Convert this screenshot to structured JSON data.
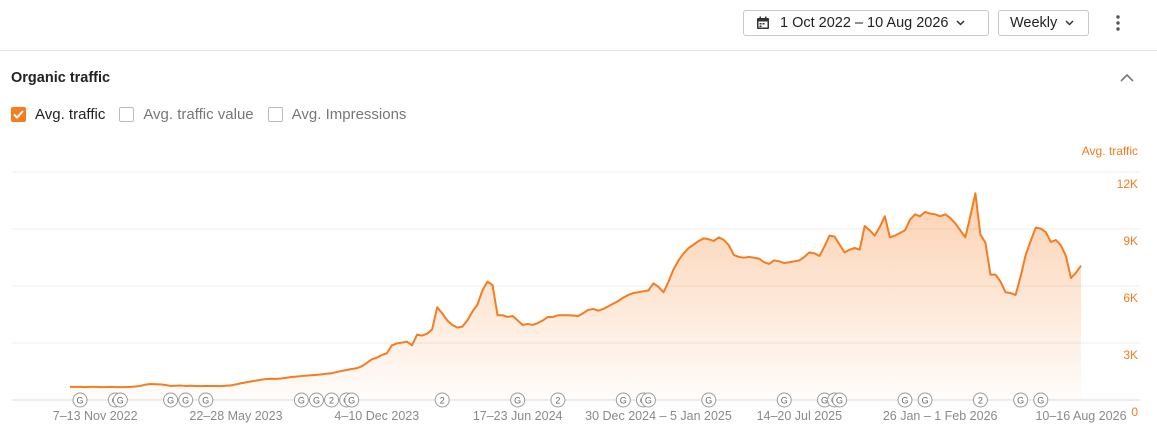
{
  "toolbar": {
    "date_range": "1 Oct 2022 – 10 Aug 2026",
    "interval": "Weekly"
  },
  "panel": {
    "title": "Organic traffic",
    "metrics": [
      {
        "label": "Avg. traffic",
        "checked": true
      },
      {
        "label": "Avg. traffic value",
        "checked": false
      },
      {
        "label": "Avg. Impressions",
        "checked": false
      }
    ]
  },
  "chart_data": {
    "type": "area",
    "y_axis_label": "Avg. traffic",
    "color": "#f57c1f",
    "grid": true,
    "categories": [
      null,
      null,
      null,
      null,
      null,
      "7–13 Nov 2022",
      null,
      null,
      null,
      null,
      null,
      null,
      null,
      null,
      null,
      null,
      null,
      null,
      null,
      null,
      null,
      null,
      null,
      null,
      null,
      null,
      null,
      null,
      null,
      null,
      null,
      null,
      null,
      "22–28 May 2023",
      null,
      null,
      null,
      null,
      null,
      null,
      null,
      null,
      null,
      null,
      null,
      null,
      null,
      null,
      null,
      null,
      null,
      null,
      null,
      null,
      null,
      null,
      null,
      null,
      null,
      null,
      null,
      "4–10 Dec 2023",
      null,
      null,
      null,
      null,
      null,
      null,
      null,
      null,
      null,
      null,
      null,
      null,
      null,
      null,
      null,
      null,
      null,
      null,
      null,
      null,
      null,
      null,
      null,
      null,
      null,
      null,
      null,
      "17–23 Jun 2024",
      null,
      null,
      null,
      null,
      null,
      null,
      null,
      null,
      null,
      null,
      null,
      null,
      null,
      null,
      null,
      null,
      null,
      null,
      null,
      null,
      null,
      null,
      null,
      null,
      null,
      null,
      null,
      "30 Dec 2024 – 5 Jan 2025",
      null,
      null,
      null,
      null,
      null,
      null,
      null,
      null,
      null,
      null,
      null,
      null,
      null,
      null,
      null,
      null,
      null,
      null,
      null,
      null,
      null,
      null,
      null,
      null,
      null,
      null,
      null,
      "14–20 Jul 2025",
      null,
      null,
      null,
      null,
      null,
      null,
      null,
      null,
      null,
      null,
      null,
      null,
      null,
      null,
      null,
      null,
      null,
      null,
      null,
      null,
      null,
      null,
      null,
      null,
      null,
      null,
      null,
      "26 Jan – 1 Feb 2026",
      null,
      null,
      null,
      null,
      null,
      null,
      null,
      null,
      null,
      null,
      null,
      null,
      null,
      null,
      null,
      null,
      null,
      null,
      null,
      null,
      null,
      null,
      null,
      null,
      null,
      null,
      null,
      "10–16 Aug 2026"
    ],
    "values": [
      690,
      690,
      690,
      680,
      690,
      690,
      680,
      680,
      690,
      680,
      680,
      680,
      690,
      710,
      740,
      810,
      840,
      830,
      820,
      790,
      740,
      750,
      760,
      740,
      750,
      740,
      730,
      740,
      740,
      740,
      730,
      750,
      770,
      820,
      880,
      930,
      980,
      1020,
      1070,
      1100,
      1120,
      1110,
      1130,
      1170,
      1210,
      1230,
      1260,
      1280,
      1300,
      1320,
      1350,
      1380,
      1410,
      1470,
      1530,
      1580,
      1630,
      1670,
      1770,
      1950,
      2140,
      2230,
      2370,
      2460,
      2880,
      2980,
      3020,
      3070,
      2880,
      3440,
      3390,
      3490,
      3720,
      4880,
      4560,
      4190,
      3950,
      3810,
      3860,
      4190,
      4650,
      5020,
      5770,
      6230,
      6050,
      4460,
      4460,
      4370,
      4420,
      4190,
      3950,
      4000,
      3950,
      4050,
      4190,
      4370,
      4370,
      4460,
      4460,
      4460,
      4450,
      4420,
      4560,
      4740,
      4790,
      4700,
      4790,
      4930,
      5070,
      5210,
      5390,
      5530,
      5630,
      5670,
      5720,
      5770,
      6140,
      5950,
      5670,
      6230,
      6880,
      7350,
      7720,
      8000,
      8180,
      8370,
      8510,
      8460,
      8370,
      8560,
      8420,
      8140,
      7630,
      7530,
      7490,
      7530,
      7490,
      7440,
      7250,
      7160,
      7350,
      7300,
      7210,
      7250,
      7300,
      7350,
      7530,
      7770,
      7720,
      7580,
      8090,
      8650,
      8600,
      8180,
      7770,
      7910,
      8000,
      7910,
      9160,
      8930,
      8650,
      9110,
      9670,
      8560,
      8650,
      8790,
      8930,
      9490,
      9770,
      9670,
      9900,
      9810,
      9770,
      9670,
      9770,
      9580,
      9300,
      8930,
      8560,
      9670,
      10880,
      8700,
      8280,
      6600,
      6600,
      6230,
      5670,
      5630,
      5530,
      6510,
      7630,
      8370,
      9070,
      9020,
      8840,
      8320,
      8420,
      8140,
      7580,
      6420,
      6700,
      7070
    ],
    "ylim": [
      0,
      12000
    ],
    "yticks": [
      0,
      {
        "value": 3000,
        "label": "3K"
      },
      {
        "value": 6000,
        "label": "6K"
      },
      {
        "value": 9000,
        "label": "9K"
      },
      {
        "value": 12000,
        "label": "12K"
      }
    ],
    "annotations": [
      {
        "index": 2,
        "label": "G"
      },
      {
        "index": 9,
        "label": "G"
      },
      {
        "index": 10,
        "label": "G"
      },
      {
        "index": 20,
        "label": "G"
      },
      {
        "index": 23,
        "label": "G"
      },
      {
        "index": 27,
        "label": "G"
      },
      {
        "index": 46,
        "label": "G"
      },
      {
        "index": 49,
        "label": "G"
      },
      {
        "index": 52,
        "label": "2"
      },
      {
        "index": 55,
        "label": "G"
      },
      {
        "index": 56,
        "label": "G"
      },
      {
        "index": 74,
        "label": "2"
      },
      {
        "index": 89,
        "label": "G"
      },
      {
        "index": 97,
        "label": "2"
      },
      {
        "index": 110,
        "label": "G"
      },
      {
        "index": 114,
        "label": "G"
      },
      {
        "index": 115,
        "label": "G"
      },
      {
        "index": 127,
        "label": "G"
      },
      {
        "index": 142,
        "label": "G"
      },
      {
        "index": 150,
        "label": "G"
      },
      {
        "index": 152,
        "label": "G"
      },
      {
        "index": 153,
        "label": "G"
      },
      {
        "index": 166,
        "label": "G"
      },
      {
        "index": 170,
        "label": "G"
      },
      {
        "index": 181,
        "label": "2"
      },
      {
        "index": 189,
        "label": "G"
      },
      {
        "index": 193,
        "label": "G"
      }
    ]
  }
}
